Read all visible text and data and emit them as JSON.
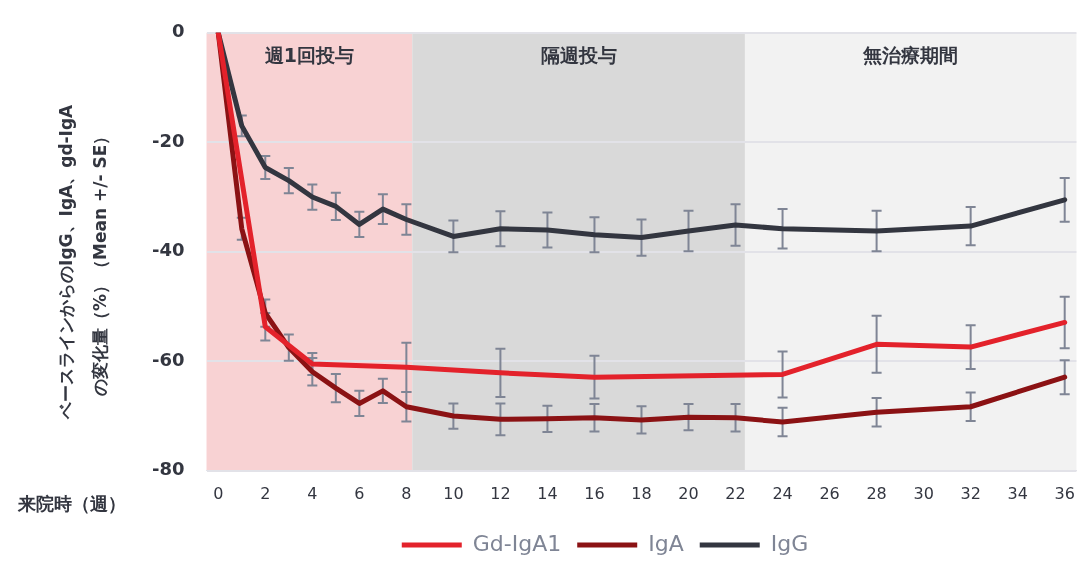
{
  "chart_data": {
    "type": "line",
    "xlabel": "来院時（週）",
    "ylabel": "ベースラインからのIgG、IgA、gd-IgA\nの変化量（%）（Mean +/- SE）",
    "xlim": [
      -0.5,
      36.5
    ],
    "xticks": [
      0,
      2,
      4,
      6,
      8,
      10,
      12,
      14,
      16,
      18,
      20,
      22,
      24,
      26,
      28,
      30,
      32,
      34,
      36
    ],
    "ylim": [
      -80,
      0
    ],
    "yticks": [
      -80,
      -60,
      -40,
      -20,
      0
    ],
    "grid": "y",
    "legend": "bottom",
    "marker": "none",
    "line_style": "solid",
    "bands": [
      {
        "axis": "x",
        "from": -0.5,
        "to": 8.25,
        "label": "週1回投与",
        "color": "#f8d2d3"
      },
      {
        "axis": "x",
        "from": 8.25,
        "to": 22.4,
        "label": "隔週投与",
        "color": "#d9d9d9"
      },
      {
        "axis": "x",
        "from": 22.4,
        "to": 36.5,
        "label": "無治療期間",
        "color": "#f2f2f2"
      }
    ],
    "series": [
      {
        "name": "Gd-IgA1",
        "color": "#e3222b",
        "x": [
          0,
          2,
          4,
          8,
          12,
          16,
          24,
          28,
          32,
          36
        ],
        "values": [
          0,
          -53.7,
          -60.5,
          -61.1,
          -62.1,
          -62.9,
          -62.4,
          -56.9,
          -57.4,
          -52.9
        ],
        "errors": [
          null,
          2.5,
          2,
          4.5,
          4.4,
          3.9,
          4.2,
          5.2,
          4,
          4.7
        ]
      },
      {
        "name": "IgA",
        "color": "#8b1214",
        "x": [
          0,
          1,
          2,
          3,
          4,
          5,
          6,
          7,
          8,
          10,
          12,
          14,
          16,
          18,
          20,
          22,
          24,
          28,
          32,
          36
        ],
        "values": [
          0,
          -35.8,
          -51.2,
          -57.5,
          -61.9,
          -64.9,
          -67.7,
          -65.4,
          -68.3,
          -70,
          -70.6,
          -70.5,
          -70.3,
          -70.7,
          -70.2,
          -70.3,
          -71.1,
          -69.3,
          -68.3,
          -62.9
        ],
        "errors": [
          null,
          2,
          2.5,
          2.4,
          2.5,
          2.6,
          2.3,
          2.2,
          2.7,
          2.3,
          2.9,
          2.4,
          2.5,
          2.5,
          2.4,
          2.5,
          2.6,
          2.6,
          2.6,
          3.1
        ]
      },
      {
        "name": "IgG",
        "color": "#333640",
        "x": [
          0,
          1,
          2,
          3,
          4,
          5,
          6,
          7,
          8,
          10,
          12,
          14,
          16,
          18,
          20,
          22,
          24,
          28,
          32,
          36
        ],
        "values": [
          0,
          -17,
          -24.6,
          -27,
          -30,
          -31.7,
          -35,
          -32.2,
          -34.1,
          -37.2,
          -35.8,
          -36,
          -36.9,
          -37.4,
          -36.2,
          -35.1,
          -35.8,
          -36.2,
          -35.3,
          -30.5
        ],
        "errors": [
          null,
          1.9,
          2.1,
          2.3,
          2.3,
          2.5,
          2.3,
          2.7,
          2.8,
          2.9,
          3.2,
          3.2,
          3.2,
          3.3,
          3.7,
          3.8,
          3.6,
          3.7,
          3.5,
          4
        ]
      }
    ]
  }
}
